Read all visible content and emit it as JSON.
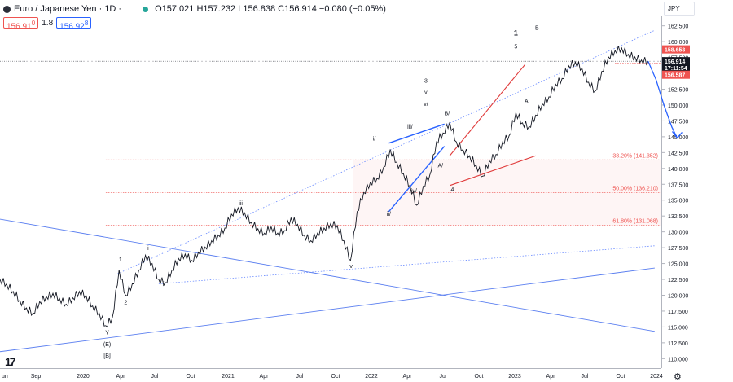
{
  "header": {
    "title": "Euro / Japanese Yen · 1D · ",
    "ohlc": "O157.021 H157.232 L156.838 C156.914 −0.080 (−0.05%)",
    "sell_price": "156.91",
    "sell_price_sub": "0",
    "spread": "1.8",
    "buy_price": "156.92",
    "buy_price_sub": "8",
    "currency": "JPY"
  },
  "colors": {
    "price_line": "#131722",
    "blue_line": "#2962ff",
    "light_blue": "#5b7ff0",
    "red_line": "#e03b3b",
    "fib_line": "#ef5350",
    "dotted_blue": "#6a8bff"
  },
  "chart_data": {
    "type": "line",
    "title": "Euro / Japanese Yen · 1D",
    "xlabel": "",
    "ylabel": "JPY",
    "ylim": [
      108.5,
      164.0
    ],
    "x_ticks": [
      "un",
      "Sep",
      "2020",
      "Apr",
      "Jul",
      "Oct",
      "2021",
      "Apr",
      "Jul",
      "Oct",
      "2022",
      "Apr",
      "Jul",
      "Oct",
      "2023",
      "Apr",
      "Jul",
      "Oct",
      "2024"
    ],
    "y_ticks": [
      "110.000",
      "112.500",
      "115.000",
      "117.500",
      "120.000",
      "122.500",
      "125.000",
      "127.500",
      "130.000",
      "132.500",
      "135.000",
      "137.500",
      "140.000",
      "142.500",
      "145.000",
      "147.500",
      "150.000",
      "152.500",
      "155.000",
      "157.500",
      "160.000",
      "162.500"
    ],
    "series": [
      {
        "name": "EURJPY",
        "points": [
          [
            0.0,
            122.5
          ],
          [
            0.5,
            121.8
          ],
          [
            1.0,
            120.6
          ],
          [
            1.5,
            119.2
          ],
          [
            2.0,
            118.0
          ],
          [
            2.5,
            117.2
          ],
          [
            3.0,
            119.0
          ],
          [
            3.5,
            119.8
          ],
          [
            4.0,
            120.3
          ],
          [
            4.5,
            119.5
          ],
          [
            5.0,
            118.6
          ],
          [
            5.5,
            119.6
          ],
          [
            6.0,
            120.6
          ],
          [
            6.5,
            120.0
          ],
          [
            7.0,
            118.3
          ],
          [
            7.5,
            117.2
          ],
          [
            8.0,
            115.2
          ],
          [
            8.5,
            116.5
          ],
          [
            9.0,
            124.0
          ],
          [
            9.5,
            120.0
          ],
          [
            10.0,
            121.8
          ],
          [
            10.5,
            124.0
          ],
          [
            11.0,
            126.3
          ],
          [
            11.5,
            125.0
          ],
          [
            12.0,
            122.5
          ],
          [
            12.5,
            122.0
          ],
          [
            13.0,
            124.0
          ],
          [
            13.5,
            125.8
          ],
          [
            14.0,
            126.5
          ],
          [
            14.5,
            125.5
          ],
          [
            15.0,
            126.8
          ],
          [
            15.5,
            127.6
          ],
          [
            16.0,
            128.6
          ],
          [
            16.5,
            129.5
          ],
          [
            17.0,
            130.6
          ],
          [
            17.5,
            132.8
          ],
          [
            18.0,
            133.8
          ],
          [
            18.5,
            133.0
          ],
          [
            19.0,
            131.5
          ],
          [
            19.5,
            130.5
          ],
          [
            20.0,
            129.8
          ],
          [
            20.5,
            130.8
          ],
          [
            21.0,
            129.8
          ],
          [
            21.5,
            130.2
          ],
          [
            22.0,
            132.2
          ],
          [
            22.5,
            131.2
          ],
          [
            23.0,
            129.5
          ],
          [
            23.5,
            128.6
          ],
          [
            24.0,
            129.8
          ],
          [
            24.5,
            130.6
          ],
          [
            25.0,
            131.3
          ],
          [
            25.5,
            131.0
          ],
          [
            26.0,
            128.6
          ],
          [
            26.5,
            125.5
          ],
          [
            27.0,
            133.2
          ],
          [
            27.5,
            136.2
          ],
          [
            28.0,
            137.8
          ],
          [
            28.5,
            138.4
          ],
          [
            29.0,
            140.2
          ],
          [
            29.5,
            143.0
          ],
          [
            30.0,
            141.0
          ],
          [
            30.5,
            139.2
          ],
          [
            31.0,
            137.3
          ],
          [
            31.5,
            134.2
          ],
          [
            32.0,
            137.2
          ],
          [
            32.5,
            139.0
          ],
          [
            33.0,
            144.2
          ],
          [
            33.5,
            145.6
          ],
          [
            34.0,
            147.3
          ],
          [
            34.5,
            144.2
          ],
          [
            35.0,
            143.0
          ],
          [
            35.5,
            142.0
          ],
          [
            36.0,
            140.5
          ],
          [
            36.5,
            138.8
          ],
          [
            37.0,
            141.2
          ],
          [
            37.5,
            142.2
          ],
          [
            38.0,
            144.2
          ],
          [
            38.5,
            145.2
          ],
          [
            39.0,
            148.8
          ],
          [
            39.5,
            147.2
          ],
          [
            40.0,
            146.6
          ],
          [
            40.5,
            148.4
          ],
          [
            41.0,
            150.2
          ],
          [
            41.5,
            151.3
          ],
          [
            42.0,
            153.3
          ],
          [
            42.5,
            154.2
          ],
          [
            43.0,
            156.2
          ],
          [
            43.5,
            156.8
          ],
          [
            44.0,
            155.8
          ],
          [
            44.5,
            153.6
          ],
          [
            45.0,
            152.2
          ],
          [
            45.5,
            155.3
          ],
          [
            46.0,
            157.6
          ],
          [
            46.5,
            158.6
          ],
          [
            47.0,
            159.0
          ],
          [
            47.5,
            158.0
          ],
          [
            48.0,
            157.6
          ],
          [
            48.5,
            157.1
          ],
          [
            49.0,
            156.9
          ]
        ]
      },
      {
        "name": "forecast_arrow",
        "points": [
          [
            49.0,
            156.9
          ],
          [
            49.6,
            154.0
          ],
          [
            50.2,
            150.0
          ],
          [
            50.8,
            146.5
          ],
          [
            51.2,
            144.8
          ]
        ]
      }
    ],
    "price_labels": [
      {
        "label": "158.653",
        "value": 158.653
      },
      {
        "label": "156.914",
        "value": 156.914
      },
      {
        "label": "17:11:54",
        "value": 156.914
      },
      {
        "label": "156.587",
        "value": 156.587
      }
    ],
    "fib_levels": [
      {
        "label": "38.20% (141.352)",
        "value": 141.352
      },
      {
        "label": "50.00% (136.210)",
        "value": 136.21
      },
      {
        "label": "61.80% (131.068)",
        "value": 131.068
      }
    ],
    "wave_labels": [
      {
        "label": "Y",
        "x": 8.1,
        "y": 113.8
      },
      {
        "label": "(E)",
        "x": 8.1,
        "y": 112.0
      },
      {
        "label": "[B]",
        "x": 8.1,
        "y": 110.2
      },
      {
        "label": "1",
        "x": 9.1,
        "y": 125.3
      },
      {
        "label": "2",
        "x": 9.5,
        "y": 118.6
      },
      {
        "label": "i",
        "x": 11.2,
        "y": 127.1
      },
      {
        "label": "ii",
        "x": 12.4,
        "y": 121.5
      },
      {
        "label": "iii",
        "x": 18.2,
        "y": 134.2
      },
      {
        "label": "iv",
        "x": 26.5,
        "y": 124.3
      },
      {
        "label": "i/",
        "x": 28.3,
        "y": 144.4
      },
      {
        "label": "ii/",
        "x": 29.4,
        "y": 132.5
      },
      {
        "label": "iii/",
        "x": 31.0,
        "y": 146.3
      },
      {
        "label": "iv/",
        "x": 31.3,
        "y": 136.2
      },
      {
        "label": "3",
        "x": 32.2,
        "y": 153.5
      },
      {
        "label": "v",
        "x": 32.2,
        "y": 151.7
      },
      {
        "label": "v/",
        "x": 32.2,
        "y": 149.9
      },
      {
        "label": "B/",
        "x": 33.8,
        "y": 148.4
      },
      {
        "label": "A/",
        "x": 33.3,
        "y": 140.2
      },
      {
        "label": "4",
        "x": 34.2,
        "y": 136.4
      },
      {
        "label": "5",
        "x": 39.0,
        "y": 158.9
      },
      {
        "label": "1",
        "x": 39.0,
        "y": 161.0
      },
      {
        "label": "A",
        "x": 39.8,
        "y": 150.3
      },
      {
        "label": "B",
        "x": 40.6,
        "y": 161.9
      }
    ],
    "annotations": [
      {
        "type": "trendline",
        "name": "dotted-upper-channel",
        "points": [
          [
            8.9,
            123.4
          ],
          [
            49.5,
            161.8
          ]
        ]
      },
      {
        "type": "trendline",
        "name": "dotted-lower-channel",
        "points": [
          [
            12.0,
            121.8
          ],
          [
            49.5,
            127.8
          ]
        ]
      },
      {
        "type": "trendline",
        "name": "blue-descending-line",
        "points": [
          [
            0.0,
            132.0
          ],
          [
            49.5,
            114.3
          ]
        ]
      },
      {
        "type": "trendline",
        "name": "blue-ascending-line",
        "points": [
          [
            0.0,
            111.1
          ],
          [
            49.5,
            124.3
          ]
        ]
      },
      {
        "type": "trendline",
        "name": "blue-wedge-upper",
        "points": [
          [
            29.4,
            144.0
          ],
          [
            33.6,
            147.0
          ]
        ]
      },
      {
        "type": "trendline",
        "name": "blue-wedge-lower",
        "points": [
          [
            29.4,
            133.2
          ],
          [
            33.6,
            143.5
          ]
        ]
      },
      {
        "type": "trendline",
        "name": "red-wedge-upper",
        "points": [
          [
            34.0,
            142.0
          ],
          [
            39.7,
            156.4
          ]
        ]
      },
      {
        "type": "trendline",
        "name": "red-wedge-lower",
        "points": [
          [
            34.0,
            137.3
          ],
          [
            40.5,
            142.0
          ]
        ]
      }
    ]
  }
}
